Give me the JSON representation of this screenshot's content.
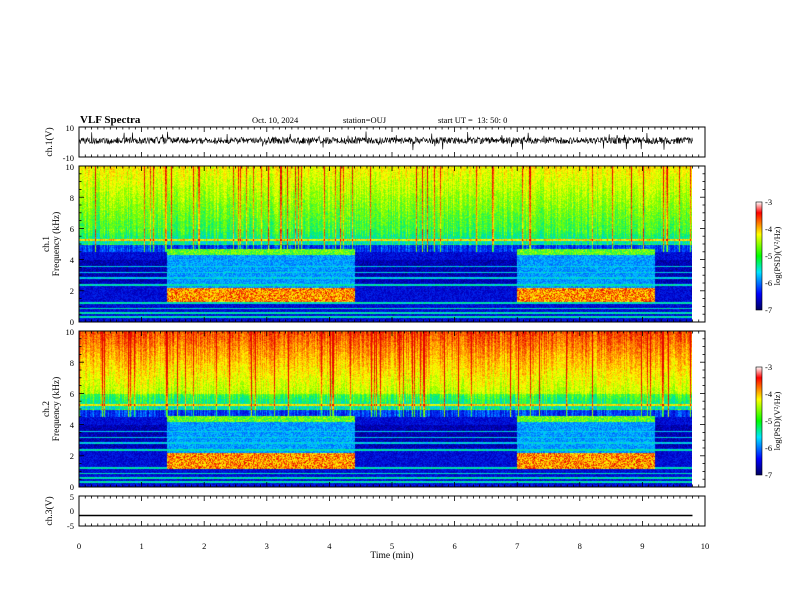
{
  "header": {
    "title": "VLF Spectra",
    "date": "Oct. 10, 2024",
    "station": "station=OUJ",
    "start": "start UT =  13: 50: 0"
  },
  "chart_data": [
    {
      "type": "line",
      "name": "ch1-waveform",
      "ylabel": "ch.1(V)",
      "ylim": [
        -10,
        10
      ],
      "yticks": [
        "10",
        "-10"
      ],
      "xlim": [
        0,
        10
      ],
      "description_values": {
        "baseline": 0,
        "approx_amplitude": 1.5
      }
    },
    {
      "type": "heatmap",
      "name": "ch1-spectrogram",
      "ylabel1": "ch.1",
      "ylabel2": "Frequency (kHz)",
      "ylim": [
        0,
        10
      ],
      "yticks": [
        "0",
        "2",
        "4",
        "6",
        "8",
        "10"
      ],
      "xlim": [
        0,
        10
      ],
      "bursts": [
        {
          "t_start": 1.4,
          "t_end": 4.4,
          "f_low": 1.3,
          "f_high": 2.2,
          "f_upper": 4.5
        },
        {
          "t_start": 7.0,
          "t_end": 9.2,
          "f_low": 1.3,
          "f_high": 2.2,
          "f_upper": 4.5
        }
      ],
      "colorbar": {
        "label": "log(PSD)(V²/Hz)",
        "ticks": [
          "-3",
          "-4",
          "-5",
          "-6",
          "-7"
        ],
        "range": [
          -7,
          -3
        ]
      }
    },
    {
      "type": "heatmap",
      "name": "ch2-spectrogram",
      "ylabel1": "ch.2",
      "ylabel2": "Frequency (kHz)",
      "ylim": [
        0,
        10
      ],
      "yticks": [
        "0",
        "2",
        "4",
        "6",
        "8",
        "10"
      ],
      "xlim": [
        0,
        10
      ],
      "bursts": [
        {
          "t_start": 1.4,
          "t_end": 4.4,
          "f_low": 1.2,
          "f_high": 2.2,
          "f_upper": 4.4
        },
        {
          "t_start": 7.0,
          "t_end": 9.2,
          "f_low": 1.2,
          "f_high": 2.2,
          "f_upper": 4.4
        }
      ],
      "colorbar": {
        "label": "log(PSD)(V²/Hz)",
        "ticks": [
          "-3",
          "-4",
          "-5",
          "-6",
          "-7"
        ],
        "range": [
          -7,
          -3
        ]
      }
    },
    {
      "type": "line",
      "name": "ch3-waveform",
      "ylabel": "ch.3(V)",
      "ylim": [
        -5,
        5
      ],
      "yticks": [
        "5",
        "0",
        "-5"
      ],
      "xlim": [
        0,
        10
      ],
      "x": [
        0,
        9.8
      ],
      "y": [
        -1.5,
        -1.5
      ]
    }
  ],
  "xaxis": {
    "label": "Time (min)",
    "ticks": [
      "0",
      "1",
      "2",
      "3",
      "4",
      "5",
      "6",
      "7",
      "8",
      "9",
      "10"
    ],
    "range": [
      0,
      10
    ]
  },
  "colors": {
    "background": "#ffffff",
    "axes": "#000000",
    "data_end_min": 9.8
  }
}
